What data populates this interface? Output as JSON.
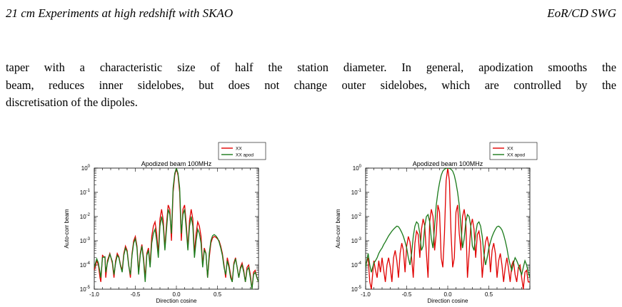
{
  "header": {
    "left": "21 cm Experiments at high redshift with SKAO",
    "right": "EoR/CD SWG"
  },
  "paragraph_lines": [
    "taper with a characteristic size of half the station diameter. In general, apodization smooths the",
    "beam, reduces inner sidelobes, but does not change outer sidelobes, which are controlled by the",
    "discretisation of the dipoles."
  ],
  "chart_data": [
    {
      "type": "line",
      "title": "Apodized beam 100MHz",
      "xlabel": "Direction cosine",
      "ylabel": "Auto-corr beam",
      "xlim": [
        -1.0,
        1.0
      ],
      "ylim": [
        1e-05,
        1
      ],
      "log_y": true,
      "xticks": [
        "-1.0",
        "-0.5",
        "0.0",
        "0.5"
      ],
      "yticks": [
        {
          "base": "10",
          "exp": "0"
        },
        {
          "base": "10",
          "exp": "-1"
        },
        {
          "base": "10",
          "exp": "-2"
        },
        {
          "base": "10",
          "exp": "-3"
        },
        {
          "base": "10",
          "exp": "-4"
        },
        {
          "base": "10",
          "exp": "-5"
        }
      ],
      "legend_position": "top-right, outside the axes",
      "series": [
        {
          "name": "XX",
          "color": "#e00000",
          "x": [
            -1.0,
            -0.97,
            -0.95,
            -0.93,
            -0.92,
            -0.9,
            -0.87,
            -0.86,
            -0.84,
            -0.81,
            -0.78,
            -0.76,
            -0.74,
            -0.72,
            -0.7,
            -0.68,
            -0.66,
            -0.64,
            -0.62,
            -0.6,
            -0.58,
            -0.56,
            -0.54,
            -0.52,
            -0.5,
            -0.48,
            -0.46,
            -0.44,
            -0.42,
            -0.4,
            -0.38,
            -0.36,
            -0.34,
            -0.32,
            -0.3,
            -0.28,
            -0.26,
            -0.24,
            -0.22,
            -0.2,
            -0.18,
            -0.16,
            -0.14,
            -0.12,
            -0.1,
            -0.08,
            -0.06,
            -0.04,
            -0.02,
            0.0,
            0.02,
            0.04,
            0.06,
            0.08,
            0.1,
            0.12,
            0.14,
            0.16,
            0.18,
            0.2,
            0.22,
            0.24,
            0.26,
            0.28,
            0.3,
            0.32,
            0.34,
            0.36,
            0.38,
            0.4,
            0.42,
            0.44,
            0.46,
            0.48,
            0.5,
            0.52,
            0.54,
            0.56,
            0.58,
            0.6,
            0.62,
            0.64,
            0.66,
            0.68,
            0.7,
            0.72,
            0.74,
            0.76,
            0.78,
            0.8,
            0.82,
            0.84,
            0.86,
            0.88,
            0.9,
            0.92,
            0.94,
            0.96,
            0.98,
            1.0
          ],
          "y": [
            6e-05,
            0.00015,
            0.0001,
            3e-05,
            2e-05,
            0.00025,
            0.0002,
            3e-05,
            0.00015,
            0.0003,
            0.00012,
            3e-05,
            0.00015,
            0.0003,
            0.00022,
            0.0001,
            6e-05,
            0.0003,
            0.0006,
            0.0004,
            0.0001,
            3e-05,
            0.0003,
            0.001,
            0.0015,
            0.0006,
            5e-05,
            0.0003,
            0.0007,
            0.0002,
            3e-05,
            0.0003,
            0.0005,
            0.0001,
            0.0015,
            0.004,
            0.006,
            0.002,
            0.0003,
            0.008,
            0.02,
            0.007,
            0.0005,
            0.005,
            0.03,
            0.02,
            0.001,
            0.1,
            0.5,
            1.0,
            0.5,
            0.1,
            0.001,
            0.02,
            0.03,
            0.005,
            0.0005,
            0.007,
            0.02,
            0.008,
            0.0003,
            0.002,
            0.006,
            0.004,
            0.0015,
            0.0001,
            0.0005,
            0.0003,
            3e-05,
            0.0002,
            0.0008,
            0.0013,
            0.0015,
            0.0014,
            0.0012,
            0.001,
            0.0006,
            0.0003,
            0.0001,
            3e-05,
            0.0002,
            0.0001,
            4e-05,
            2e-05,
            0.00012,
            0.0002,
            8e-05,
            3e-05,
            8e-05,
            0.00012,
            6e-05,
            2e-05,
            8e-05,
            0.0001,
            4e-05,
            1e-05,
            5e-05,
            6e-05,
            3e-05,
            2e-05
          ]
        },
        {
          "name": "XX apod",
          "color": "#1a7a1a",
          "x": [
            -1.0,
            -0.97,
            -0.95,
            -0.93,
            -0.92,
            -0.9,
            -0.87,
            -0.86,
            -0.84,
            -0.81,
            -0.78,
            -0.76,
            -0.74,
            -0.72,
            -0.7,
            -0.68,
            -0.66,
            -0.64,
            -0.62,
            -0.6,
            -0.58,
            -0.56,
            -0.54,
            -0.52,
            -0.5,
            -0.48,
            -0.46,
            -0.44,
            -0.42,
            -0.4,
            -0.38,
            -0.36,
            -0.34,
            -0.32,
            -0.3,
            -0.28,
            -0.26,
            -0.24,
            -0.22,
            -0.2,
            -0.18,
            -0.16,
            -0.14,
            -0.12,
            -0.1,
            -0.08,
            -0.06,
            -0.04,
            -0.02,
            0.0,
            0.02,
            0.04,
            0.06,
            0.08,
            0.1,
            0.12,
            0.14,
            0.16,
            0.18,
            0.2,
            0.22,
            0.24,
            0.26,
            0.28,
            0.3,
            0.32,
            0.34,
            0.36,
            0.38,
            0.4,
            0.42,
            0.44,
            0.46,
            0.48,
            0.5,
            0.52,
            0.54,
            0.56,
            0.58,
            0.6,
            0.62,
            0.64,
            0.66,
            0.68,
            0.7,
            0.72,
            0.74,
            0.76,
            0.78,
            0.8,
            0.82,
            0.84,
            0.86,
            0.88,
            0.9,
            0.92,
            0.94,
            0.96,
            0.98,
            1.0
          ],
          "y": [
            8e-05,
            0.00018,
            0.00012,
            5e-05,
            3e-05,
            0.0002,
            0.00022,
            5e-05,
            0.00012,
            0.00028,
            0.00014,
            4e-05,
            0.00012,
            0.00025,
            0.0002,
            9e-05,
            5e-05,
            0.00025,
            0.0005,
            0.00035,
            9e-05,
            4e-05,
            0.00025,
            0.0008,
            0.0012,
            0.0005,
            4e-05,
            0.00025,
            0.0006,
            0.00015,
            2e-05,
            0.00025,
            0.0004,
            8e-05,
            0.0008,
            0.002,
            0.003,
            0.001,
            0.0002,
            0.004,
            0.01,
            0.004,
            0.0004,
            0.003,
            0.02,
            0.012,
            0.002,
            0.15,
            0.6,
            1.0,
            0.6,
            0.15,
            0.002,
            0.012,
            0.02,
            0.003,
            0.0004,
            0.004,
            0.01,
            0.004,
            0.0002,
            0.001,
            0.003,
            0.002,
            0.0008,
            8e-05,
            0.0004,
            0.0003,
            3e-05,
            0.0003,
            0.001,
            0.0016,
            0.0018,
            0.0016,
            0.0013,
            0.0009,
            0.0005,
            0.00025,
            8e-05,
            4e-05,
            0.00015,
            8e-05,
            3e-05,
            2e-05,
            0.0001,
            0.00018,
            8e-05,
            3e-05,
            7e-05,
            0.0001,
            5e-05,
            2e-05,
            6e-05,
            8e-05,
            3e-05,
            1e-05,
            4e-05,
            5e-05,
            3e-05,
            2e-05
          ]
        }
      ]
    },
    {
      "type": "line",
      "title": "Apodized beam 100MHz",
      "xlabel": "Direction cosine",
      "ylabel": "Auto-corr beam",
      "xlim": [
        -1.0,
        1.0
      ],
      "ylim": [
        1e-05,
        1
      ],
      "log_y": true,
      "xticks": [
        "-1.0",
        "-0.5",
        "0.0",
        "0.5"
      ],
      "yticks": [
        {
          "base": "10",
          "exp": "0"
        },
        {
          "base": "10",
          "exp": "-1"
        },
        {
          "base": "10",
          "exp": "-2"
        },
        {
          "base": "10",
          "exp": "-3"
        },
        {
          "base": "10",
          "exp": "-4"
        },
        {
          "base": "10",
          "exp": "-5"
        }
      ],
      "legend_position": "top-right, outside the axes",
      "series": [
        {
          "name": "XX",
          "color": "#e00000",
          "x": [
            -1.0,
            -0.97,
            -0.95,
            -0.93,
            -0.9,
            -0.88,
            -0.86,
            -0.84,
            -0.82,
            -0.8,
            -0.78,
            -0.76,
            -0.74,
            -0.72,
            -0.7,
            -0.68,
            -0.66,
            -0.64,
            -0.62,
            -0.6,
            -0.58,
            -0.56,
            -0.54,
            -0.52,
            -0.5,
            -0.48,
            -0.46,
            -0.44,
            -0.42,
            -0.4,
            -0.38,
            -0.36,
            -0.34,
            -0.32,
            -0.3,
            -0.28,
            -0.26,
            -0.24,
            -0.22,
            -0.2,
            -0.18,
            -0.16,
            -0.14,
            -0.12,
            -0.1,
            -0.08,
            -0.06,
            -0.04,
            -0.02,
            0.0,
            0.02,
            0.04,
            0.06,
            0.08,
            0.1,
            0.12,
            0.14,
            0.16,
            0.18,
            0.2,
            0.22,
            0.24,
            0.26,
            0.28,
            0.3,
            0.32,
            0.34,
            0.36,
            0.38,
            0.4,
            0.42,
            0.44,
            0.46,
            0.48,
            0.5,
            0.52,
            0.54,
            0.56,
            0.58,
            0.6,
            0.62,
            0.64,
            0.66,
            0.68,
            0.7,
            0.72,
            0.74,
            0.76,
            0.78,
            0.8,
            0.82,
            0.84,
            0.86,
            0.88,
            0.9,
            0.92,
            0.94,
            0.96,
            0.98,
            1.0
          ],
          "y": [
            0.0001,
            0.0002,
            2e-05,
            7e-06,
            0.00015,
            6e-05,
            3e-05,
            0.00015,
            5e-05,
            0.0002,
            6e-05,
            2e-05,
            0.0001,
            0.0002,
            8e-05,
            2e-05,
            0.0002,
            0.0004,
            0.00015,
            3e-05,
            0.0003,
            0.0008,
            0.0004,
            5e-05,
            0.0006,
            0.0015,
            0.0009,
            0.0002,
            3e-05,
            0.0008,
            0.0025,
            0.0018,
            0.0002,
            0.003,
            0.008,
            0.004,
            0.0003,
            3e-05,
            0.006,
            0.02,
            0.01,
            0.0004,
            0.002,
            0.03,
            0.015,
            0.0002,
            8e-05,
            0.002,
            0.3,
            1.0,
            0.3,
            0.002,
            8e-05,
            0.0002,
            0.015,
            0.03,
            0.002,
            0.0004,
            0.01,
            0.02,
            0.006,
            3e-05,
            0.0003,
            0.004,
            0.008,
            0.003,
            0.0002,
            0.0018,
            0.0025,
            0.0008,
            3e-05,
            0.0002,
            0.0009,
            0.0015,
            0.0006,
            5e-05,
            0.0004,
            0.0008,
            0.0003,
            3e-05,
            0.00015,
            0.0003,
            0.0001,
            2e-05,
            8e-05,
            0.0002,
            7e-05,
            2e-05,
            0.0001,
            0.00015,
            4e-05,
            2e-05,
            8e-05,
            0.0001,
            3e-05,
            1e-05,
            5e-05,
            6e-05,
            2e-05,
            2e-05
          ]
        },
        {
          "name": "XX apod",
          "color": "#1a7a1a",
          "x": [
            -1.0,
            -0.97,
            -0.95,
            -0.93,
            -0.9,
            -0.88,
            -0.86,
            -0.84,
            -0.82,
            -0.8,
            -0.78,
            -0.76,
            -0.74,
            -0.72,
            -0.7,
            -0.68,
            -0.66,
            -0.64,
            -0.62,
            -0.6,
            -0.58,
            -0.56,
            -0.54,
            -0.52,
            -0.5,
            -0.48,
            -0.46,
            -0.44,
            -0.42,
            -0.4,
            -0.38,
            -0.36,
            -0.34,
            -0.32,
            -0.3,
            -0.28,
            -0.26,
            -0.24,
            -0.22,
            -0.2,
            -0.18,
            -0.16,
            -0.14,
            -0.12,
            -0.1,
            -0.08,
            -0.06,
            -0.04,
            -0.02,
            0.0,
            0.02,
            0.04,
            0.06,
            0.08,
            0.1,
            0.12,
            0.14,
            0.16,
            0.18,
            0.2,
            0.22,
            0.24,
            0.26,
            0.28,
            0.3,
            0.32,
            0.34,
            0.36,
            0.38,
            0.4,
            0.42,
            0.44,
            0.46,
            0.48,
            0.5,
            0.52,
            0.54,
            0.56,
            0.58,
            0.6,
            0.62,
            0.64,
            0.66,
            0.68,
            0.7,
            0.72,
            0.74,
            0.76,
            0.78,
            0.8,
            0.82,
            0.84,
            0.86,
            0.88,
            0.9,
            0.92,
            0.94,
            0.96,
            0.98,
            1.0
          ],
          "y": [
            8e-05,
            0.0003,
            0.0001,
            5e-05,
            0.00012,
            0.00015,
            0.0002,
            0.0003,
            0.0004,
            0.0005,
            0.0007,
            0.0009,
            0.0012,
            0.0016,
            0.002,
            0.0025,
            0.003,
            0.0035,
            0.004,
            0.0038,
            0.003,
            0.0022,
            0.0015,
            0.0009,
            0.0005,
            0.0002,
            0.0001,
            0.0003,
            0.0015,
            0.004,
            0.006,
            0.005,
            0.002,
            0.0004,
            0.0006,
            0.004,
            0.01,
            0.012,
            0.006,
            0.0012,
            0.0005,
            0.004,
            0.03,
            0.1,
            0.25,
            0.5,
            0.75,
            0.9,
            0.98,
            1.0,
            0.98,
            0.9,
            0.75,
            0.5,
            0.25,
            0.1,
            0.03,
            0.004,
            0.0005,
            0.0012,
            0.006,
            0.012,
            0.01,
            0.004,
            0.0006,
            0.0004,
            0.002,
            0.005,
            0.006,
            0.004,
            0.0015,
            0.0003,
            0.0001,
            0.0002,
            0.0005,
            0.0009,
            0.0015,
            0.0022,
            0.003,
            0.0038,
            0.004,
            0.0035,
            0.0028,
            0.0018,
            0.001,
            0.0005,
            0.0002,
            0.0001,
            6e-05,
            0.00012,
            0.0002,
            0.00015,
            0.0001,
            6e-05,
            4e-05,
            8e-05,
            0.00015,
            0.0001,
            5e-05,
            3e-05
          ]
        }
      ]
    }
  ]
}
